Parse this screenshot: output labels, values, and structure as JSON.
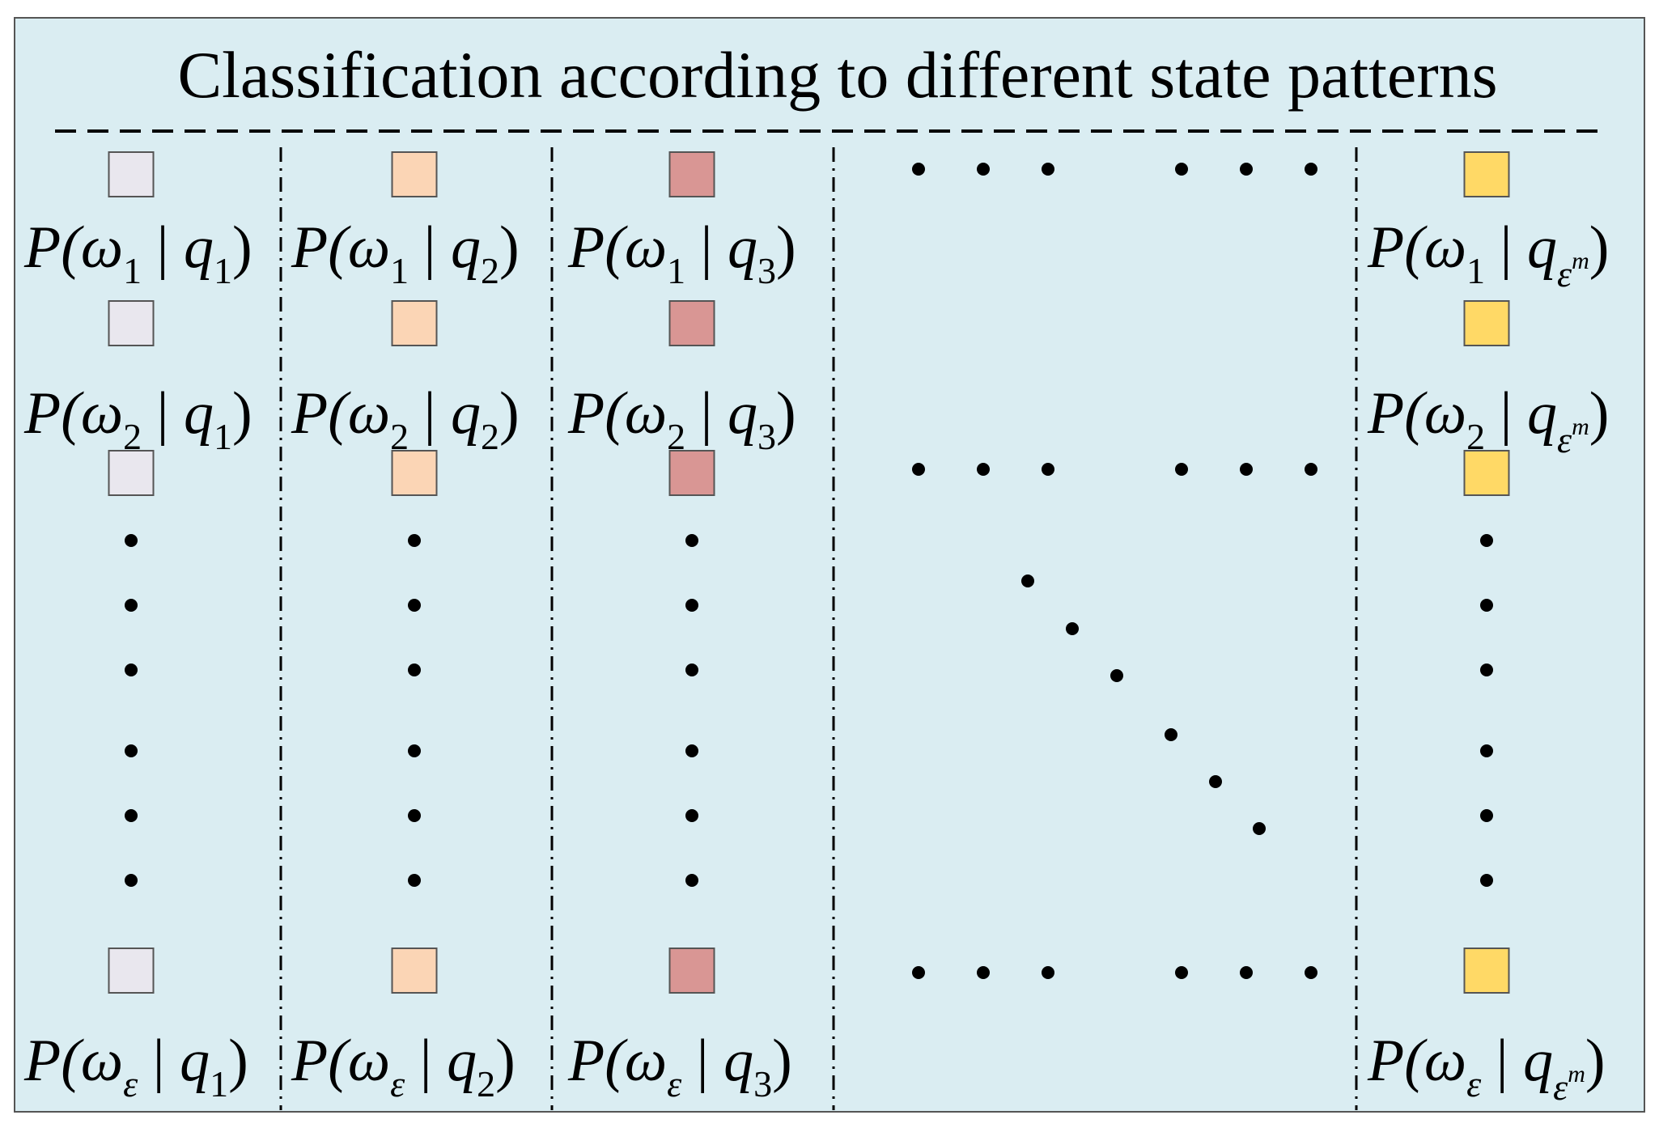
{
  "diagram": {
    "title": "Classification according to different state patterns",
    "colors": {
      "background": "#daedf2",
      "border": "#555555",
      "dot": "#000000",
      "q1": "#e9e7ee",
      "q2": "#fbd5b5",
      "q3": "#d99694",
      "qm": "#ffd966"
    },
    "columns": [
      {
        "id": "q1",
        "labels": [
          {
            "pre": "P(",
            "w": "ω",
            "wsub": "1",
            "mid": " | ",
            "q": "q",
            "qsub": "1",
            "qsup": "",
            "post": ")"
          },
          {
            "pre": "P(",
            "w": "ω",
            "wsub": "2",
            "mid": " | ",
            "q": "q",
            "qsub": "1",
            "qsup": "",
            "post": ")"
          },
          {
            "pre": "P(",
            "w": "ω",
            "wsub": "ε",
            "mid": " | ",
            "q": "q",
            "qsub": "1",
            "qsup": "",
            "post": ")"
          }
        ]
      },
      {
        "id": "q2",
        "labels": [
          {
            "pre": "P(",
            "w": "ω",
            "wsub": "1",
            "mid": " | ",
            "q": "q",
            "qsub": "2",
            "qsup": "",
            "post": ")"
          },
          {
            "pre": "P(",
            "w": "ω",
            "wsub": "2",
            "mid": " | ",
            "q": "q",
            "qsub": "2",
            "qsup": "",
            "post": ")"
          },
          {
            "pre": "P(",
            "w": "ω",
            "wsub": "ε",
            "mid": " | ",
            "q": "q",
            "qsub": "2",
            "qsup": "",
            "post": ")"
          }
        ]
      },
      {
        "id": "q3",
        "labels": [
          {
            "pre": "P(",
            "w": "ω",
            "wsub": "1",
            "mid": " | ",
            "q": "q",
            "qsub": "3",
            "qsup": "",
            "post": ")"
          },
          {
            "pre": "P(",
            "w": "ω",
            "wsub": "2",
            "mid": " | ",
            "q": "q",
            "qsub": "3",
            "qsup": "",
            "post": ")"
          },
          {
            "pre": "P(",
            "w": "ω",
            "wsub": "ε",
            "mid": " | ",
            "q": "q",
            "qsub": "3",
            "qsup": "",
            "post": ")"
          }
        ]
      },
      {
        "id": "qm",
        "labels": [
          {
            "pre": "P(",
            "w": "ω",
            "wsub": "1",
            "mid": " | ",
            "q": "q",
            "qsub": "ε",
            "qsup": "m",
            "post": ")"
          },
          {
            "pre": "P(",
            "w": "ω",
            "wsub": "2",
            "mid": " | ",
            "q": "q",
            "qsub": "ε",
            "qsup": "m",
            "post": ")"
          },
          {
            "pre": "P(",
            "w": "ω",
            "wsub": "ε",
            "mid": " | ",
            "q": "q",
            "qsub": "ε",
            "qsup": "m",
            "post": ")"
          }
        ]
      }
    ]
  }
}
